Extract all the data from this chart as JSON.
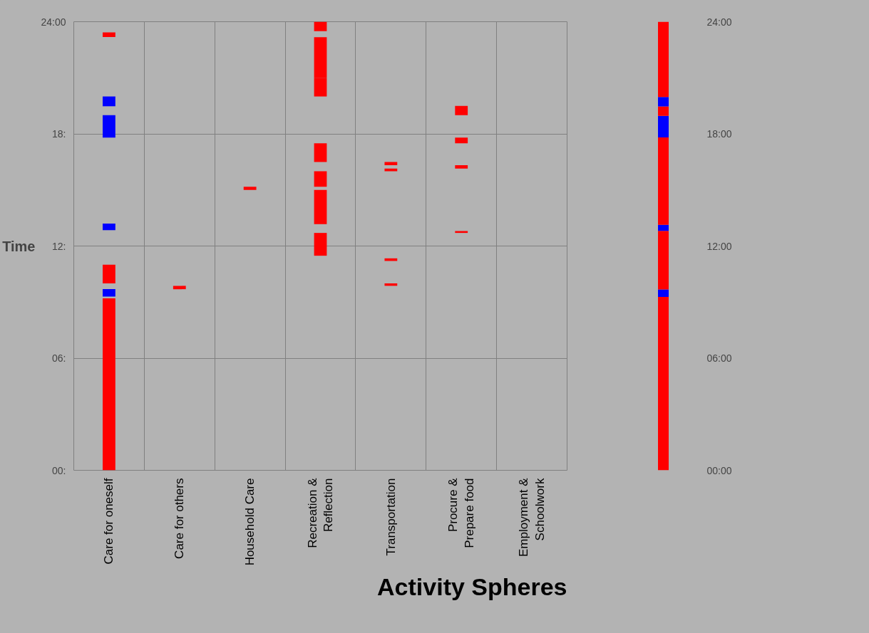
{
  "chart_data": [
    {
      "type": "bar",
      "title": "Activity Spheres",
      "ylabel": "Time",
      "categories": [
        "Care for oneself",
        "Care for others",
        "Household Care",
        "Recreation &\nReflection",
        "Transportation",
        "Procure &\nPrepare food",
        "Employment &\nSchoolwork"
      ],
      "ylim": [
        0,
        24
      ],
      "yticks": [
        {
          "value": 0,
          "label": "00:"
        },
        {
          "value": 6,
          "label": "06:"
        },
        {
          "value": 12,
          "label": "12:"
        },
        {
          "value": 18,
          "label": "18:"
        },
        {
          "value": 24,
          "label": "24:00"
        }
      ],
      "grid": true,
      "series": [
        {
          "color": "#ff0000",
          "values": [
            9.2,
            null,
            null,
            null,
            null,
            null,
            null
          ],
          "base": [
            0,
            null,
            null,
            null,
            null,
            null,
            null
          ]
        },
        {
          "color": "#0000ff",
          "values": [
            0.4,
            null,
            null,
            null,
            null,
            null,
            null
          ],
          "base": [
            9.3,
            null,
            null,
            null,
            null,
            null,
            null
          ]
        },
        {
          "color": "#ff0000",
          "values": [
            null,
            0.18,
            null,
            null,
            null,
            null,
            null
          ],
          "base": [
            null,
            9.69,
            null,
            null,
            null,
            null,
            null
          ]
        },
        {
          "color": "#ff0000",
          "values": [
            null,
            null,
            null,
            null,
            0.13,
            null,
            null
          ],
          "base": [
            null,
            null,
            null,
            null,
            9.87,
            null,
            null
          ]
        },
        {
          "color": "#ff0000",
          "values": [
            1.0,
            null,
            null,
            null,
            null,
            null,
            null
          ],
          "base": [
            10.0,
            null,
            null,
            null,
            null,
            null,
            null
          ]
        },
        {
          "color": "#ff0000",
          "values": [
            null,
            null,
            null,
            null,
            0.14,
            null,
            null
          ],
          "base": [
            null,
            null,
            null,
            null,
            11.2,
            null,
            null
          ]
        },
        {
          "color": "#ff0000",
          "values": [
            null,
            null,
            null,
            1.22,
            null,
            null,
            null
          ],
          "base": [
            null,
            null,
            null,
            11.48,
            null,
            null,
            null
          ]
        },
        {
          "color": "#ff0000",
          "values": [
            null,
            null,
            null,
            null,
            null,
            0.1,
            null
          ],
          "base": [
            null,
            null,
            null,
            null,
            null,
            12.7,
            null
          ]
        },
        {
          "color": "#0000ff",
          "values": [
            0.35,
            null,
            null,
            null,
            null,
            null,
            null
          ],
          "base": [
            12.85,
            null,
            null,
            null,
            null,
            null,
            null
          ]
        },
        {
          "color": "#ff0000",
          "values": [
            null,
            null,
            null,
            1.83,
            null,
            null,
            null
          ],
          "base": [
            null,
            null,
            null,
            13.17,
            null,
            null,
            null
          ]
        },
        {
          "color": "#ff0000",
          "values": [
            null,
            null,
            0.17,
            null,
            null,
            null,
            null
          ],
          "base": [
            null,
            null,
            15.0,
            null,
            null,
            null,
            null
          ]
        },
        {
          "color": "#ff0000",
          "values": [
            null,
            null,
            null,
            0.83,
            null,
            null,
            null
          ],
          "base": [
            null,
            null,
            null,
            15.17,
            null,
            null,
            null
          ]
        },
        {
          "color": "#ff0000",
          "values": [
            null,
            null,
            null,
            null,
            0.14,
            null,
            null
          ],
          "base": [
            null,
            null,
            null,
            null,
            16.0,
            null,
            null
          ]
        },
        {
          "color": "#ff0000",
          "values": [
            null,
            null,
            null,
            null,
            null,
            0.18,
            null
          ],
          "base": [
            null,
            null,
            null,
            null,
            null,
            16.14,
            null
          ]
        },
        {
          "color": "#ff0000",
          "values": [
            null,
            null,
            null,
            null,
            0.18,
            null,
            null
          ],
          "base": [
            null,
            null,
            null,
            null,
            16.32,
            null,
            null
          ]
        },
        {
          "color": "#ff0000",
          "values": [
            null,
            null,
            null,
            1.0,
            null,
            null,
            null
          ],
          "base": [
            null,
            null,
            null,
            16.5,
            null,
            null,
            null
          ]
        },
        {
          "color": "#ff0000",
          "values": [
            null,
            null,
            null,
            null,
            null,
            0.3,
            null
          ],
          "base": [
            null,
            null,
            null,
            null,
            null,
            17.5,
            null
          ]
        },
        {
          "color": "#0000ff",
          "values": [
            1.2,
            null,
            null,
            null,
            null,
            null,
            null
          ],
          "base": [
            17.8,
            null,
            null,
            null,
            null,
            null,
            null
          ]
        },
        {
          "color": "#ff0000",
          "values": [
            null,
            null,
            null,
            null,
            null,
            0.5,
            null
          ],
          "base": [
            null,
            null,
            null,
            null,
            null,
            19.0,
            null
          ]
        },
        {
          "color": "#0000ff",
          "values": [
            0.52,
            null,
            null,
            null,
            null,
            null,
            null
          ],
          "base": [
            19.48,
            null,
            null,
            null,
            null,
            null,
            null
          ]
        },
        {
          "color": "#ff0000",
          "values": [
            null,
            null,
            null,
            1.0,
            null,
            null,
            null
          ],
          "base": [
            null,
            null,
            null,
            20.0,
            null,
            null,
            null
          ]
        },
        {
          "color": "#ff0000",
          "values": [
            null,
            null,
            null,
            2.17,
            null,
            null,
            null
          ],
          "base": [
            null,
            null,
            null,
            21.0,
            null,
            null,
            null
          ]
        },
        {
          "color": "#ff0000",
          "values": [
            0.25,
            null,
            null,
            null,
            null,
            null,
            null
          ],
          "base": [
            23.18,
            null,
            null,
            null,
            null,
            null,
            null
          ]
        },
        {
          "color": "#ff0000",
          "values": [
            null,
            null,
            null,
            0.5,
            null,
            null,
            null
          ],
          "base": [
            null,
            null,
            null,
            23.5,
            null,
            null,
            null
          ]
        }
      ]
    },
    {
      "type": "bar",
      "stacked": true,
      "categories": [
        null
      ],
      "ylim": [
        0,
        24
      ],
      "tick_labels": "y",
      "yticks": [
        {
          "value": 0,
          "label": "00:00"
        },
        {
          "value": 6,
          "label": "06:00"
        },
        {
          "value": 12,
          "label": "12:00"
        },
        {
          "value": 18,
          "label": "18:00"
        },
        {
          "value": 24,
          "label": "24:00"
        }
      ],
      "series": [
        {
          "color": "#ff0000",
          "values": [
            9.28
          ]
        },
        {
          "color": "#0000ff",
          "values": [
            0.4
          ]
        },
        {
          "color": "#ff0000",
          "values": [
            3.13
          ]
        },
        {
          "color": "#0000ff",
          "values": [
            0.32
          ]
        },
        {
          "color": "#ff0000",
          "values": [
            4.68
          ]
        },
        {
          "color": "#0000ff",
          "values": [
            1.15
          ]
        },
        {
          "color": "#ff0000",
          "values": [
            0.51
          ]
        },
        {
          "color": "#0000ff",
          "values": [
            0.5
          ]
        },
        {
          "color": "#ff0000",
          "values": [
            4.03
          ]
        }
      ]
    }
  ]
}
